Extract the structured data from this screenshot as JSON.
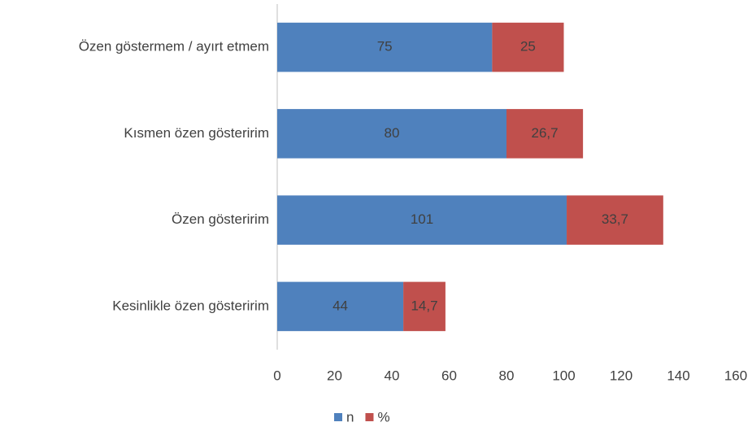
{
  "chart_data": {
    "type": "stacked_barh",
    "categories": [
      "Özen göstermem / ayırt etmem",
      "Kısmen özen gösteririm",
      "Özen gösteririm",
      "Kesinlikle özen gösteririm"
    ],
    "series": [
      {
        "name": "n",
        "color": "#4f81bd",
        "values": [
          75,
          80,
          101,
          44
        ]
      },
      {
        "name": "%",
        "color": "#c0504d",
        "values": [
          25,
          26.7,
          33.7,
          14.7
        ],
        "value_labels": [
          "25",
          "26,7",
          "33,7",
          "14,7"
        ]
      }
    ],
    "xlim": [
      0,
      160
    ],
    "xticks": [
      0,
      20,
      40,
      60,
      80,
      100,
      120,
      140,
      160
    ],
    "grid": false,
    "legend": "bottom"
  }
}
